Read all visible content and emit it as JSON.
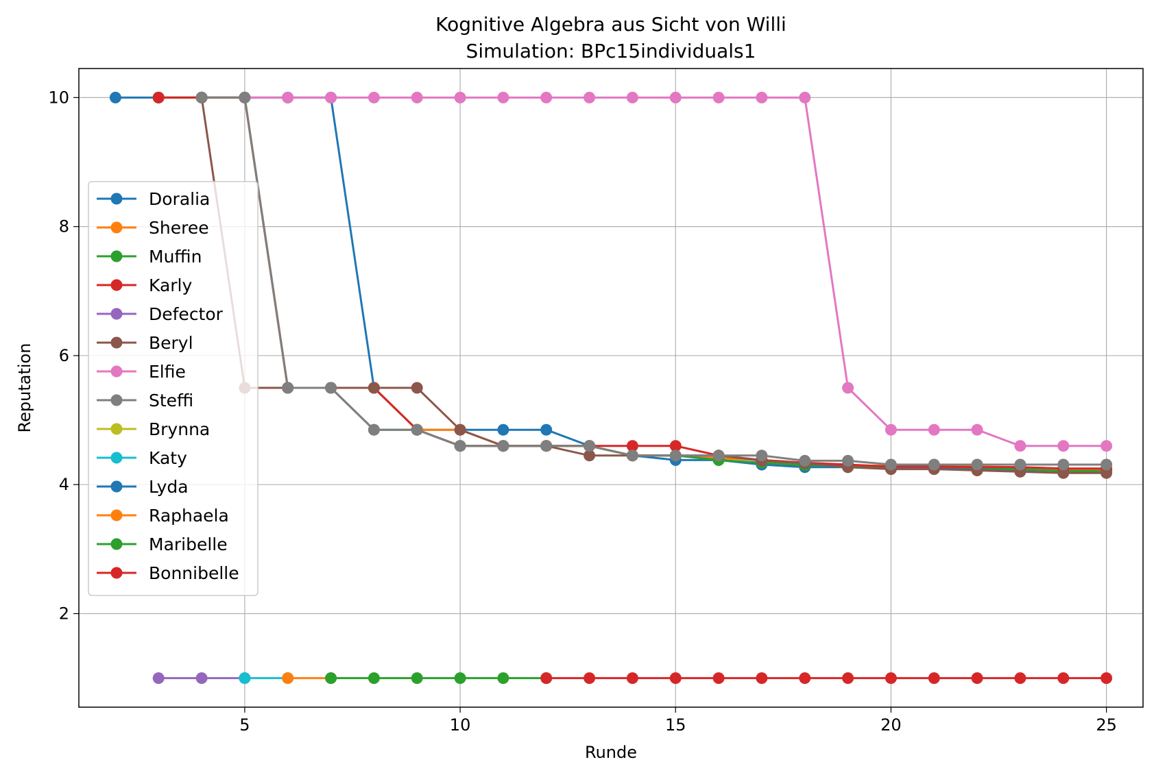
{
  "chart_data": {
    "type": "line",
    "title": "Kognitive Algebra aus Sicht von Willi",
    "subtitle": "Simulation: BPc15individuals1",
    "xlabel": "Runde",
    "ylabel": "Reputation",
    "xlim": [
      1.15,
      25.85
    ],
    "ylim": [
      0.55,
      10.45
    ],
    "xticks": [
      5,
      10,
      15,
      20,
      25
    ],
    "yticks": [
      2,
      4,
      6,
      8,
      10
    ],
    "grid": true,
    "legend_position": "center-left",
    "series": [
      {
        "name": "Doralia",
        "color": "#1f77b4",
        "x": [
          2,
          3,
          4,
          5,
          6,
          7,
          8,
          9,
          10,
          11,
          12,
          13,
          14,
          15,
          16,
          17,
          18,
          19,
          20,
          21,
          22,
          23,
          24,
          25
        ],
        "y": [
          10,
          10,
          10,
          10,
          10,
          10,
          5.5,
          4.85,
          4.85,
          4.85,
          4.85,
          4.6,
          4.45,
          4.38,
          4.38,
          4.31,
          4.27,
          4.27,
          4.25,
          4.25,
          4.25,
          4.23,
          4.21,
          4.21
        ]
      },
      {
        "name": "Sheree",
        "color": "#ff7f0e",
        "x": [
          3,
          4,
          5,
          6,
          7,
          8,
          9,
          10,
          11,
          12,
          13,
          14,
          15,
          16,
          17,
          18,
          19,
          20,
          21,
          22,
          23,
          24,
          25
        ],
        "y": [
          10,
          10,
          10,
          5.5,
          5.5,
          5.5,
          4.85,
          4.85,
          4.6,
          4.6,
          4.6,
          4.45,
          4.45,
          4.41,
          4.38,
          4.34,
          4.3,
          4.29,
          4.29,
          4.28,
          4.27,
          4.24,
          4.24
        ]
      },
      {
        "name": "Muffin",
        "color": "#2ca02c",
        "x": [
          3,
          4,
          5,
          6,
          7,
          8,
          9,
          10,
          11,
          12,
          13,
          14,
          15,
          16,
          17,
          18,
          19,
          20,
          21,
          22,
          23,
          24,
          25
        ],
        "y": [
          10,
          10,
          10,
          5.5,
          5.5,
          4.85,
          4.85,
          4.6,
          4.6,
          4.6,
          4.6,
          4.45,
          4.45,
          4.38,
          4.34,
          4.3,
          4.29,
          4.28,
          4.28,
          4.26,
          4.24,
          4.21,
          4.21
        ]
      },
      {
        "name": "Karly",
        "color": "#d62728",
        "x": [
          3,
          4,
          5,
          6,
          7,
          8,
          9,
          10,
          11,
          12,
          13,
          14,
          15,
          16,
          17,
          18,
          19,
          20,
          21,
          22,
          23,
          24,
          25
        ],
        "y": [
          10,
          10,
          10,
          5.5,
          5.5,
          5.5,
          4.85,
          4.6,
          4.6,
          4.6,
          4.6,
          4.6,
          4.6,
          4.45,
          4.38,
          4.34,
          4.31,
          4.28,
          4.28,
          4.27,
          4.27,
          4.25,
          4.25
        ]
      },
      {
        "name": "Defector",
        "color": "#9467bd",
        "x": [
          3,
          4,
          5
        ],
        "y": [
          1,
          1,
          1
        ]
      },
      {
        "name": "Beryl",
        "color": "#8c564b",
        "x": [
          4,
          5,
          6,
          7,
          8,
          9,
          10,
          11,
          12,
          13,
          14,
          15,
          16,
          17,
          18,
          19,
          20,
          21,
          22,
          23,
          24,
          25
        ],
        "y": [
          10,
          5.5,
          5.5,
          5.5,
          5.5,
          5.5,
          4.85,
          4.6,
          4.6,
          4.45,
          4.45,
          4.45,
          4.45,
          4.37,
          4.33,
          4.27,
          4.24,
          4.24,
          4.22,
          4.2,
          4.18,
          4.18
        ]
      },
      {
        "name": "Elfie",
        "color": "#e377c2",
        "x": [
          5,
          6,
          7,
          8,
          9,
          10,
          11,
          12,
          13,
          14,
          15,
          16,
          17,
          18,
          19,
          20,
          21,
          22,
          23,
          24,
          25
        ],
        "y": [
          10,
          10,
          10,
          10,
          10,
          10,
          10,
          10,
          10,
          10,
          10,
          10,
          10,
          10,
          5.5,
          4.85,
          4.85,
          4.85,
          4.6,
          4.6,
          4.6
        ]
      },
      {
        "name": "Steffi",
        "color": "#7f7f7f",
        "x": [
          4,
          5,
          6,
          7,
          8,
          9,
          10,
          11,
          12,
          13,
          14,
          15,
          16,
          17,
          18,
          19,
          20,
          21,
          22,
          23,
          24,
          25
        ],
        "y": [
          10,
          10,
          5.5,
          5.5,
          4.85,
          4.85,
          4.6,
          4.6,
          4.6,
          4.6,
          4.45,
          4.45,
          4.45,
          4.45,
          4.37,
          4.37,
          4.31,
          4.31,
          4.31,
          4.31,
          4.31,
          4.31
        ]
      },
      {
        "name": "Brynna",
        "color": "#bcbd22",
        "x": [],
        "y": []
      },
      {
        "name": "Katy",
        "color": "#17becf",
        "x": [
          5,
          6
        ],
        "y": [
          1,
          1
        ]
      },
      {
        "name": "Lyda",
        "color": "#1f77b4",
        "x": [],
        "y": []
      },
      {
        "name": "Raphaela",
        "color": "#ff7f0e",
        "x": [
          6,
          7
        ],
        "y": [
          1,
          1
        ]
      },
      {
        "name": "Maribelle",
        "color": "#2ca02c",
        "x": [
          7,
          8,
          9,
          10,
          11,
          12
        ],
        "y": [
          1,
          1,
          1,
          1,
          1,
          1
        ]
      },
      {
        "name": "Bonnibelle",
        "color": "#d62728",
        "x": [
          12,
          13,
          14,
          15,
          16,
          17,
          18,
          19,
          20,
          21,
          22,
          23,
          24,
          25
        ],
        "y": [
          1,
          1,
          1,
          1,
          1,
          1,
          1,
          1,
          1,
          1,
          1,
          1,
          1,
          1
        ]
      }
    ]
  }
}
